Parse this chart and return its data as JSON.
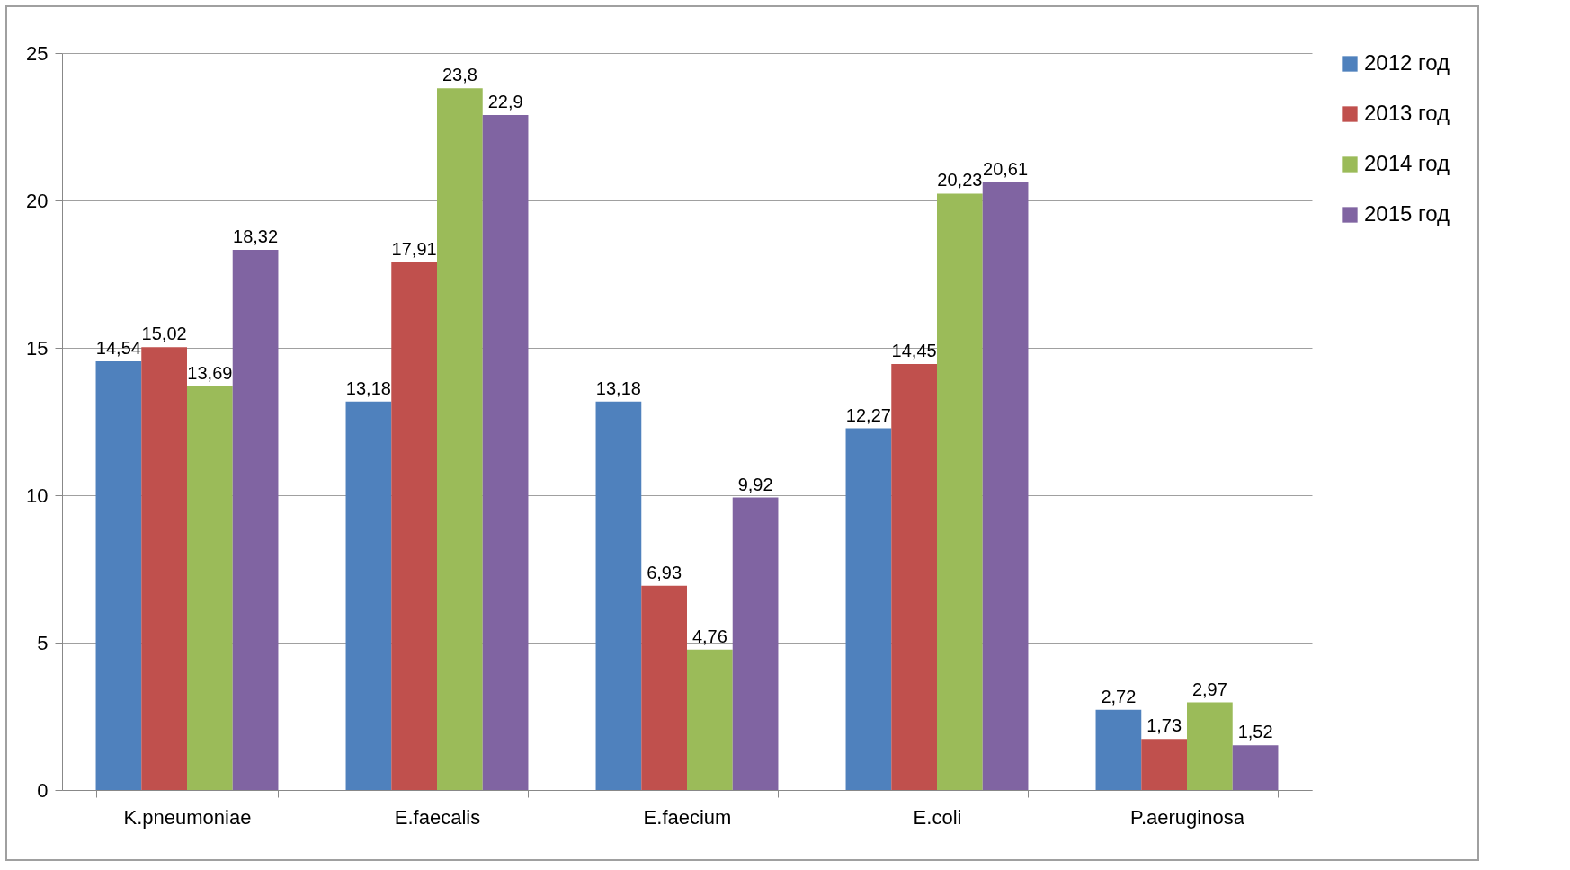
{
  "chart_data": {
    "type": "bar",
    "categories": [
      "K.pneumoniae",
      "E.faecalis",
      "E.faecium",
      "E.coli",
      "P.aeruginosa"
    ],
    "series": [
      {
        "name": "2012 год",
        "color": "#4f81bd",
        "values": [
          14.54,
          13.18,
          13.18,
          12.27,
          2.72
        ],
        "value_labels": [
          "14,54",
          "13,18",
          "13,18",
          "12,27",
          "2,72"
        ]
      },
      {
        "name": "2013 год",
        "color": "#c0504d",
        "values": [
          15.02,
          17.91,
          6.93,
          14.45,
          1.73
        ],
        "value_labels": [
          "15,02",
          "17,91",
          "6,93",
          "14,45",
          "1,73"
        ]
      },
      {
        "name": "2014 год",
        "color": "#9bbb59",
        "values": [
          13.69,
          23.8,
          4.76,
          20.23,
          2.97
        ],
        "value_labels": [
          "13,69",
          "23,8",
          "4,76",
          "20,23",
          "2,97"
        ]
      },
      {
        "name": "2015 год",
        "color": "#8064a2",
        "values": [
          18.32,
          22.9,
          9.92,
          20.61,
          1.52
        ],
        "value_labels": [
          "18,32",
          "22,9",
          "9,92",
          "20,61",
          "1,52"
        ]
      }
    ],
    "ylim": [
      0,
      25
    ],
    "yticks": [
      0,
      5,
      10,
      15,
      20,
      25
    ],
    "grid": "y",
    "legend": "right"
  }
}
